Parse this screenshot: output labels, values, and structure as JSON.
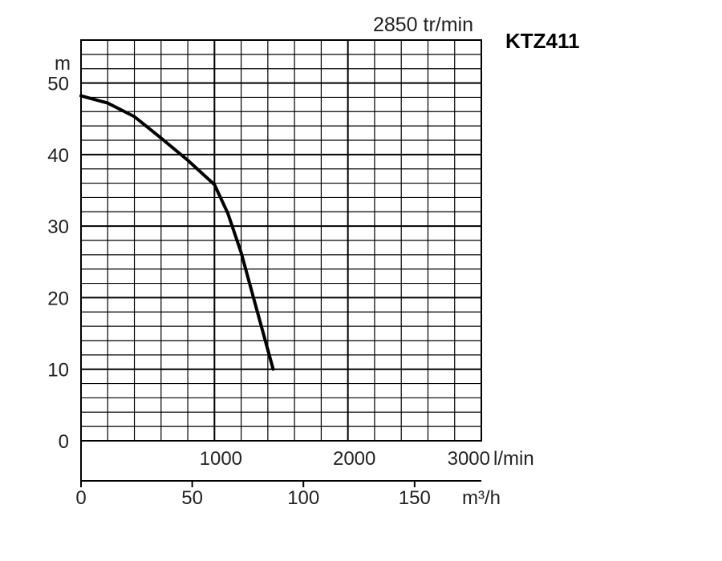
{
  "chart_data": {
    "type": "line",
    "title": "KTZ411",
    "subtitle": "2850 tr/min",
    "ylabel": "m",
    "ylim": [
      0,
      56
    ],
    "yticks": [
      0,
      10,
      20,
      30,
      40,
      50
    ],
    "xlim_lmin": [
      0,
      3000
    ],
    "xticks_lmin": [
      1000,
      2000,
      3000
    ],
    "xunit_lmin": "l/min",
    "xticks_m3h": [
      0,
      50,
      100,
      150
    ],
    "xunit_m3h": "m³/h",
    "grid": true,
    "series": [
      {
        "x": [
          0,
          200,
          400,
          600,
          800,
          1000,
          1100,
          1200,
          1300,
          1440
        ],
        "y": [
          48.2,
          47.2,
          45.3,
          42.3,
          39.2,
          35.8,
          31.8,
          26.3,
          19.5,
          10
        ]
      }
    ]
  }
}
